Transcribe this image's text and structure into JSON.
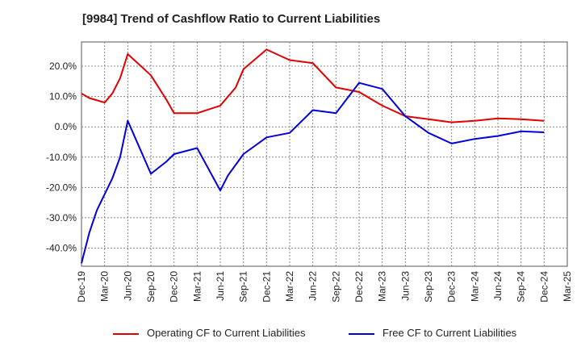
{
  "title": "[9984]  Trend of Cashflow Ratio to Current Liabilities",
  "chart_data": {
    "type": "line",
    "title": "[9984]  Trend of Cashflow Ratio to Current Liabilities",
    "xlabel": "",
    "ylabel": "",
    "x_ticks": [
      "Dec-19",
      "Mar-20",
      "Jun-20",
      "Sep-20",
      "Dec-20",
      "Mar-21",
      "Jun-21",
      "Sep-21",
      "Dec-21",
      "Mar-22",
      "Jun-22",
      "Sep-22",
      "Dec-22",
      "Mar-23",
      "Jun-23",
      "Sep-23",
      "Dec-23",
      "Mar-24",
      "Jun-24",
      "Sep-24",
      "Dec-24",
      "Mar-25"
    ],
    "y_ticks": [
      "20.0%",
      "10.0%",
      "0.0%",
      "-10.0%",
      "-20.0%",
      "-30.0%",
      "-40.0%"
    ],
    "y_tick_values": [
      20,
      10,
      0,
      -10,
      -20,
      -30,
      -40
    ],
    "ylim": [
      -46,
      28
    ],
    "grid": true,
    "legend_position": "bottom",
    "series": [
      {
        "name": "Operating CF to Current Liabilities",
        "color": "#e00000",
        "x": [
          "2019-12",
          "2020-01",
          "2020-03",
          "2020-04",
          "2020-05",
          "2020-06",
          "2020-09",
          "2020-11",
          "2020-12",
          "2021-03",
          "2021-06",
          "2021-08",
          "2021-09",
          "2021-12",
          "2022-03",
          "2022-06",
          "2022-09",
          "2022-12",
          "2023-03",
          "2023-06",
          "2023-09",
          "2023-12",
          "2024-03",
          "2024-06",
          "2024-09",
          "2024-12"
        ],
        "values": [
          11.0,
          9.5,
          8.0,
          11.0,
          16.0,
          24.0,
          17.0,
          9.0,
          4.5,
          4.5,
          7.0,
          13.0,
          19.0,
          25.5,
          22.0,
          21.0,
          13.0,
          11.5,
          7.0,
          3.5,
          2.5,
          1.5,
          2.0,
          2.8,
          2.5,
          2.0
        ]
      },
      {
        "name": "Free CF to Current Liabilities",
        "color": "#0000dd",
        "x": [
          "2019-12",
          "2020-01",
          "2020-02",
          "2020-04",
          "2020-05",
          "2020-06",
          "2020-09",
          "2020-11",
          "2020-12",
          "2021-03",
          "2021-06",
          "2021-07",
          "2021-09",
          "2021-12",
          "2022-03",
          "2022-06",
          "2022-09",
          "2022-12",
          "2023-03",
          "2023-06",
          "2023-09",
          "2023-12",
          "2024-03",
          "2024-06",
          "2024-09",
          "2024-12"
        ],
        "values": [
          -45.0,
          -35.0,
          -27.5,
          -17.0,
          -10.0,
          2.0,
          -15.5,
          -11.5,
          -9.0,
          -7.0,
          -21.0,
          -16.0,
          -9.0,
          -3.5,
          -2.0,
          5.5,
          4.5,
          14.5,
          12.5,
          3.5,
          -2.0,
          -5.5,
          -4.0,
          -3.0,
          -1.5,
          -1.8
        ]
      }
    ]
  }
}
